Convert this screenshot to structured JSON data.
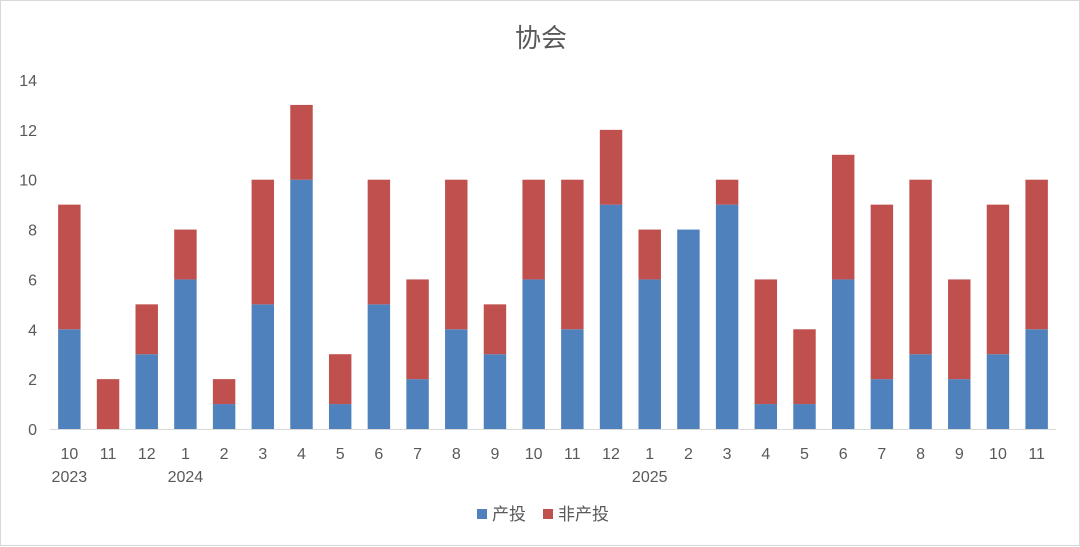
{
  "chart_data": {
    "type": "bar",
    "stacked": true,
    "title": "协会",
    "xlabel": "",
    "ylabel": "",
    "ylim": [
      0,
      14
    ],
    "y_ticks": [
      0,
      2,
      4,
      6,
      8,
      10,
      12,
      14
    ],
    "grid": false,
    "legend_position": "bottom",
    "categories": [
      "10",
      "11",
      "12",
      "1",
      "2",
      "3",
      "4",
      "5",
      "6",
      "7",
      "8",
      "9",
      "10",
      "11",
      "12",
      "1",
      "2",
      "3",
      "4",
      "5",
      "6",
      "7",
      "8",
      "9",
      "10",
      "11"
    ],
    "year_labels": [
      {
        "index": 0,
        "label": "2023"
      },
      {
        "index": 3,
        "label": "2024"
      },
      {
        "index": 15,
        "label": "2025"
      }
    ],
    "series": [
      {
        "name": "产投",
        "color": "#4f81bd",
        "values": [
          4,
          0,
          3,
          6,
          1,
          5,
          10,
          1,
          5,
          2,
          4,
          3,
          6,
          4,
          9,
          6,
          8,
          9,
          1,
          1,
          6,
          2,
          3,
          2,
          3,
          4
        ]
      },
      {
        "name": "非产投",
        "color": "#c0504d",
        "values": [
          5,
          2,
          2,
          2,
          1,
          5,
          3,
          2,
          5,
          4,
          6,
          2,
          4,
          6,
          3,
          2,
          0,
          1,
          5,
          3,
          5,
          7,
          7,
          4,
          6,
          6
        ]
      }
    ]
  }
}
